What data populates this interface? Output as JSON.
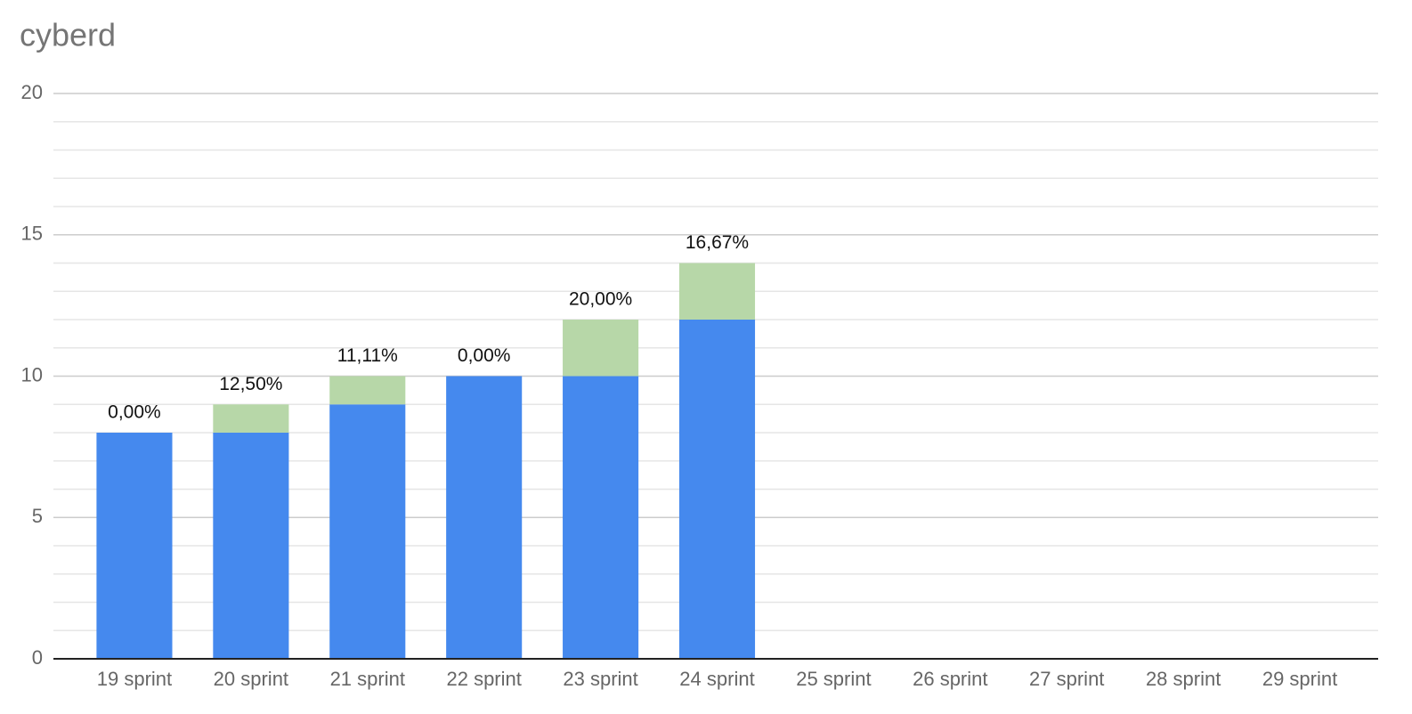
{
  "chart_data": {
    "type": "stacked_bar",
    "title": "cyberd",
    "categories": [
      "19 sprint",
      "20 sprint",
      "21 sprint",
      "22 sprint",
      "23 sprint",
      "24 sprint",
      "25 sprint",
      "26 sprint",
      "27 sprint",
      "28 sprint",
      "29 sprint"
    ],
    "series": [
      {
        "color": "#4589ee",
        "values": [
          8,
          8,
          9,
          10,
          10,
          12,
          null,
          null,
          null,
          null,
          null
        ]
      },
      {
        "color": "#b7d7a8",
        "values": [
          0,
          1,
          1,
          0,
          2,
          2,
          null,
          null,
          null,
          null,
          null
        ]
      }
    ],
    "top_labels": [
      "0,00%",
      "12,50%",
      "11,11%",
      "0,00%",
      "20,00%",
      "16,67%",
      null,
      null,
      null,
      null,
      null
    ],
    "ylim": [
      0,
      20
    ],
    "yticks": [
      0,
      5,
      10,
      15,
      20
    ],
    "grid": true
  }
}
